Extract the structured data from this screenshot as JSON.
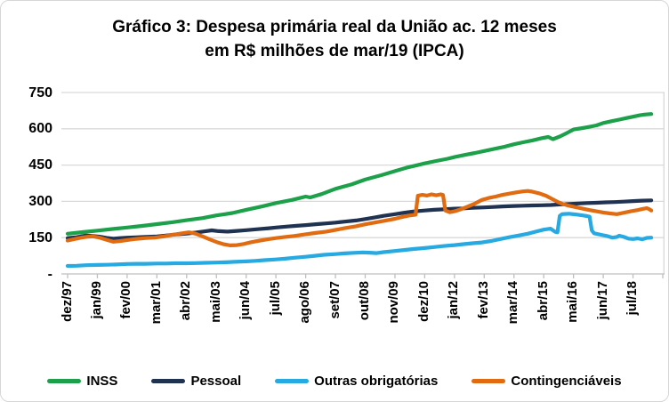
{
  "title": {
    "line1": "Gráfico 3: Despesa primária real da União ac. 12 meses",
    "line2": "em R$ milhões de mar/19 (IPCA)"
  },
  "chart_data": {
    "type": "line",
    "title": "Gráfico 3: Despesa primária real da União ac. 12 meses em R$ milhões de mar/19 (IPCA)",
    "x_unit": "months since dez/97 (monthly series, dez/97 to mar/19)",
    "x_tick_interval_months": 13,
    "x_tick_labels": [
      "dez/97",
      "jan/99",
      "fev/00",
      "mar/01",
      "abr/02",
      "mai/03",
      "jun/04",
      "jul/05",
      "ago/06",
      "set/07",
      "out/08",
      "nov/09",
      "dez/10",
      "jan/12",
      "fev/13",
      "mar/14",
      "abr/15",
      "mai/16",
      "jun/17",
      "jul/18"
    ],
    "y_ticks": [
      {
        "label": "750",
        "value": 750
      },
      {
        "label": "600",
        "value": 600
      },
      {
        "label": "450",
        "value": 450
      },
      {
        "label": "300",
        "value": 300
      },
      {
        "label": "150",
        "value": 150
      },
      {
        "label": "-",
        "value": 0
      }
    ],
    "ylim": [
      0,
      750
    ],
    "xlim_months": [
      0,
      260
    ],
    "grid": "horizontal",
    "legend_position": "bottom",
    "axis_color": "#bfbfbf",
    "gridline_color": "#d9d9d9",
    "series": [
      {
        "name": "INSS",
        "color": "#1ca049",
        "points": [
          [
            0,
            166
          ],
          [
            7,
            173
          ],
          [
            13,
            179
          ],
          [
            20,
            186
          ],
          [
            26,
            192
          ],
          [
            33,
            199
          ],
          [
            39,
            206
          ],
          [
            46,
            214
          ],
          [
            52,
            222
          ],
          [
            59,
            231
          ],
          [
            65,
            242
          ],
          [
            72,
            252
          ],
          [
            78,
            265
          ],
          [
            85,
            279
          ],
          [
            91,
            293
          ],
          [
            98,
            306
          ],
          [
            104,
            320
          ],
          [
            106,
            316
          ],
          [
            111,
            330
          ],
          [
            117,
            352
          ],
          [
            124,
            370
          ],
          [
            130,
            390
          ],
          [
            137,
            408
          ],
          [
            143,
            425
          ],
          [
            148,
            439
          ],
          [
            153,
            450
          ],
          [
            156,
            457
          ],
          [
            161,
            467
          ],
          [
            166,
            476
          ],
          [
            169,
            483
          ],
          [
            174,
            493
          ],
          [
            178,
            500
          ],
          [
            182,
            508
          ],
          [
            187,
            518
          ],
          [
            191,
            526
          ],
          [
            195,
            536
          ],
          [
            199,
            544
          ],
          [
            203,
            552
          ],
          [
            207,
            561
          ],
          [
            210,
            566
          ],
          [
            212,
            557
          ],
          [
            215,
            568
          ],
          [
            218,
            582
          ],
          [
            221,
            597
          ],
          [
            225,
            603
          ],
          [
            228,
            608
          ],
          [
            231,
            614
          ],
          [
            234,
            624
          ],
          [
            238,
            632
          ],
          [
            241,
            638
          ],
          [
            244,
            644
          ],
          [
            247,
            650
          ],
          [
            250,
            656
          ],
          [
            252,
            659
          ],
          [
            255,
            661
          ]
        ]
      },
      {
        "name": "Pessoal",
        "color": "#1f3251",
        "points": [
          [
            0,
            148
          ],
          [
            4,
            152
          ],
          [
            8,
            159
          ],
          [
            11,
            157
          ],
          [
            14,
            154
          ],
          [
            17,
            149
          ],
          [
            20,
            146
          ],
          [
            23,
            148
          ],
          [
            26,
            150
          ],
          [
            30,
            151
          ],
          [
            34,
            153
          ],
          [
            39,
            155
          ],
          [
            43,
            159
          ],
          [
            47,
            163
          ],
          [
            52,
            167
          ],
          [
            56,
            171
          ],
          [
            60,
            176
          ],
          [
            63,
            180
          ],
          [
            66,
            177
          ],
          [
            70,
            175
          ],
          [
            74,
            178
          ],
          [
            78,
            181
          ],
          [
            83,
            185
          ],
          [
            88,
            189
          ],
          [
            91,
            192
          ],
          [
            96,
            196
          ],
          [
            100,
            199
          ],
          [
            104,
            202
          ],
          [
            109,
            206
          ],
          [
            113,
            209
          ],
          [
            117,
            212
          ],
          [
            121,
            216
          ],
          [
            126,
            221
          ],
          [
            130,
            227
          ],
          [
            134,
            233
          ],
          [
            138,
            240
          ],
          [
            143,
            247
          ],
          [
            147,
            253
          ],
          [
            151,
            258
          ],
          [
            156,
            262
          ],
          [
            160,
            265
          ],
          [
            164,
            267
          ],
          [
            169,
            270
          ],
          [
            173,
            271
          ],
          [
            177,
            273
          ],
          [
            182,
            275
          ],
          [
            186,
            277
          ],
          [
            190,
            279
          ],
          [
            195,
            281
          ],
          [
            199,
            282
          ],
          [
            203,
            283
          ],
          [
            207,
            284
          ],
          [
            211,
            285
          ],
          [
            215,
            287
          ],
          [
            219,
            289
          ],
          [
            223,
            291
          ],
          [
            227,
            293
          ],
          [
            231,
            294
          ],
          [
            235,
            296
          ],
          [
            239,
            297
          ],
          [
            243,
            299
          ],
          [
            247,
            301
          ],
          [
            251,
            303
          ],
          [
            255,
            304
          ]
        ]
      },
      {
        "name": "Outras obrigatórias",
        "color": "#27a9e1",
        "points": [
          [
            0,
            33
          ],
          [
            4,
            34
          ],
          [
            8,
            36
          ],
          [
            13,
            37
          ],
          [
            17,
            38
          ],
          [
            21,
            39
          ],
          [
            26,
            41
          ],
          [
            30,
            42
          ],
          [
            34,
            42
          ],
          [
            39,
            43
          ],
          [
            43,
            43
          ],
          [
            47,
            44
          ],
          [
            52,
            44
          ],
          [
            56,
            45
          ],
          [
            60,
            46
          ],
          [
            65,
            47
          ],
          [
            69,
            48
          ],
          [
            73,
            50
          ],
          [
            78,
            52
          ],
          [
            82,
            54
          ],
          [
            86,
            57
          ],
          [
            91,
            60
          ],
          [
            95,
            63
          ],
          [
            99,
            67
          ],
          [
            104,
            71
          ],
          [
            108,
            75
          ],
          [
            112,
            79
          ],
          [
            117,
            82
          ],
          [
            121,
            85
          ],
          [
            125,
            87
          ],
          [
            129,
            89
          ],
          [
            132,
            88
          ],
          [
            135,
            86
          ],
          [
            138,
            90
          ],
          [
            143,
            95
          ],
          [
            147,
            99
          ],
          [
            151,
            103
          ],
          [
            156,
            107
          ],
          [
            160,
            111
          ],
          [
            164,
            115
          ],
          [
            169,
            119
          ],
          [
            173,
            123
          ],
          [
            177,
            127
          ],
          [
            181,
            130
          ],
          [
            185,
            136
          ],
          [
            189,
            144
          ],
          [
            193,
            152
          ],
          [
            197,
            159
          ],
          [
            201,
            166
          ],
          [
            205,
            176
          ],
          [
            208,
            183
          ],
          [
            211,
            187
          ],
          [
            213,
            174
          ],
          [
            214,
            172
          ],
          [
            215,
            240
          ],
          [
            216,
            247
          ],
          [
            219,
            249
          ],
          [
            222,
            246
          ],
          [
            225,
            242
          ],
          [
            227,
            239
          ],
          [
            228,
            237
          ],
          [
            229,
            180
          ],
          [
            230,
            168
          ],
          [
            232,
            164
          ],
          [
            234,
            160
          ],
          [
            236,
            156
          ],
          [
            238,
            150
          ],
          [
            240,
            153
          ],
          [
            241,
            158
          ],
          [
            243,
            153
          ],
          [
            245,
            146
          ],
          [
            247,
            144
          ],
          [
            249,
            147
          ],
          [
            251,
            143
          ],
          [
            253,
            149
          ],
          [
            255,
            150
          ]
        ]
      },
      {
        "name": "Contingenciáveis",
        "color": "#e06b10",
        "points": [
          [
            0,
            138
          ],
          [
            3,
            144
          ],
          [
            6,
            150
          ],
          [
            9,
            154
          ],
          [
            11,
            155
          ],
          [
            14,
            150
          ],
          [
            17,
            141
          ],
          [
            20,
            133
          ],
          [
            23,
            136
          ],
          [
            26,
            140
          ],
          [
            30,
            145
          ],
          [
            34,
            148
          ],
          [
            38,
            150
          ],
          [
            42,
            155
          ],
          [
            46,
            162
          ],
          [
            50,
            168
          ],
          [
            53,
            172
          ],
          [
            56,
            166
          ],
          [
            59,
            155
          ],
          [
            62,
            143
          ],
          [
            65,
            132
          ],
          [
            68,
            123
          ],
          [
            71,
            118
          ],
          [
            74,
            119
          ],
          [
            77,
            124
          ],
          [
            80,
            131
          ],
          [
            84,
            138
          ],
          [
            88,
            144
          ],
          [
            91,
            148
          ],
          [
            95,
            153
          ],
          [
            99,
            157
          ],
          [
            104,
            164
          ],
          [
            108,
            169
          ],
          [
            113,
            175
          ],
          [
            117,
            182
          ],
          [
            121,
            189
          ],
          [
            126,
            197
          ],
          [
            130,
            205
          ],
          [
            134,
            212
          ],
          [
            138,
            219
          ],
          [
            143,
            228
          ],
          [
            146,
            235
          ],
          [
            149,
            241
          ],
          [
            152,
            245
          ],
          [
            153,
            323
          ],
          [
            155,
            327
          ],
          [
            157,
            324
          ],
          [
            159,
            329
          ],
          [
            161,
            325
          ],
          [
            163,
            329
          ],
          [
            164,
            326
          ],
          [
            165,
            262
          ],
          [
            167,
            255
          ],
          [
            169,
            259
          ],
          [
            172,
            268
          ],
          [
            175,
            279
          ],
          [
            178,
            291
          ],
          [
            181,
            306
          ],
          [
            184,
            314
          ],
          [
            187,
            320
          ],
          [
            190,
            327
          ],
          [
            193,
            332
          ],
          [
            196,
            337
          ],
          [
            199,
            341
          ],
          [
            201,
            343
          ],
          [
            203,
            340
          ],
          [
            206,
            333
          ],
          [
            209,
            323
          ],
          [
            212,
            308
          ],
          [
            214,
            298
          ],
          [
            216,
            290
          ],
          [
            219,
            282
          ],
          [
            222,
            276
          ],
          [
            225,
            270
          ],
          [
            228,
            264
          ],
          [
            231,
            259
          ],
          [
            234,
            254
          ],
          [
            237,
            250
          ],
          [
            240,
            247
          ],
          [
            243,
            253
          ],
          [
            246,
            259
          ],
          [
            249,
            264
          ],
          [
            251,
            268
          ],
          [
            253,
            272
          ],
          [
            254,
            268
          ],
          [
            255,
            262
          ]
        ]
      }
    ]
  }
}
